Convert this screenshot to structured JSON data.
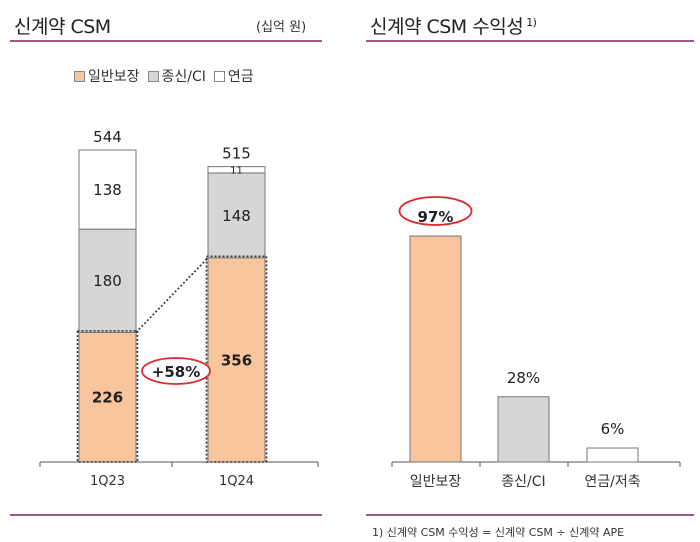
{
  "left_panel": {
    "title": "신계약 CSM",
    "unit": "(십억 원)"
  },
  "right_panel": {
    "title": "신계약 CSM 수익성",
    "title_note": "1)",
    "footnote": "1) 신계약 CSM 수익성 = 신계약 CSM ÷ 신계약 APE"
  },
  "colors": {
    "general": "#f8c59c",
    "whole_life": "#d6d6d6",
    "annuity": "#ffffff",
    "accent_rule": "#9c5a8c",
    "highlight_circle": "#e0282c"
  },
  "chart_data": [
    {
      "type": "bar",
      "stacked": true,
      "categories": [
        "1Q23",
        "1Q24"
      ],
      "series": [
        {
          "name": "일반보장",
          "values": [
            226,
            356
          ]
        },
        {
          "name": "종신/CI",
          "values": [
            180,
            148
          ]
        },
        {
          "name": "연금",
          "values": [
            138,
            11
          ]
        }
      ],
      "totals": [
        544,
        515
      ],
      "annotation": "+58%",
      "legend_position": "top"
    },
    {
      "type": "bar",
      "categories": [
        "일반보장",
        "종신/CI",
        "연금/저축"
      ],
      "values": [
        97,
        28,
        6
      ],
      "value_labels": [
        "97%",
        "28%",
        "6%"
      ]
    }
  ]
}
